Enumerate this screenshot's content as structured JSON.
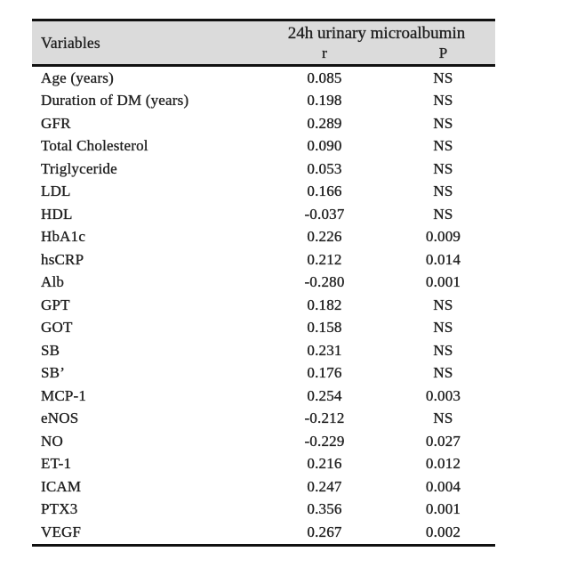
{
  "table": {
    "header": {
      "variables_label": "Variables",
      "group_label": "24h urinary microalbumin",
      "col_r": "r",
      "col_p": "P"
    },
    "rows": [
      {
        "variable": "Age (years)",
        "r": "0.085",
        "p": "NS"
      },
      {
        "variable": "Duration of DM (years)",
        "r": "0.198",
        "p": "NS"
      },
      {
        "variable": "GFR",
        "r": "0.289",
        "p": "NS"
      },
      {
        "variable": "Total Cholesterol",
        "r": "0.090",
        "p": "NS"
      },
      {
        "variable": "Triglyceride",
        "r": "0.053",
        "p": "NS"
      },
      {
        "variable": "LDL",
        "r": "0.166",
        "p": "NS"
      },
      {
        "variable": "HDL",
        "r": "-0.037",
        "p": "NS"
      },
      {
        "variable": "HbA1c",
        "r": "0.226",
        "p": "0.009"
      },
      {
        "variable": "hsCRP",
        "r": "0.212",
        "p": "0.014"
      },
      {
        "variable": "Alb",
        "r": "-0.280",
        "p": "0.001"
      },
      {
        "variable": "GPT",
        "r": "0.182",
        "p": "NS"
      },
      {
        "variable": "GOT",
        "r": "0.158",
        "p": "NS"
      },
      {
        "variable": "SB",
        "r": "0.231",
        "p": "NS"
      },
      {
        "variable": "SB’",
        "r": "0.176",
        "p": "NS"
      },
      {
        "variable": "MCP-1",
        "r": "0.254",
        "p": "0.003"
      },
      {
        "variable": "eNOS",
        "r": "-0.212",
        "p": "NS"
      },
      {
        "variable": "NO",
        "r": "-0.229",
        "p": "0.027"
      },
      {
        "variable": "ET-1",
        "r": "0.216",
        "p": "0.012"
      },
      {
        "variable": "ICAM",
        "r": "0.247",
        "p": "0.004"
      },
      {
        "variable": "PTX3",
        "r": "0.356",
        "p": "0.001"
      },
      {
        "variable": "VEGF",
        "r": "0.267",
        "p": "0.002"
      }
    ]
  },
  "chart_data": {
    "type": "table",
    "columns": [
      "Variables",
      "r",
      "P"
    ],
    "column_group": {
      "label": "24h urinary microalbumin",
      "spans": [
        "r",
        "P"
      ]
    },
    "rows": [
      [
        "Age (years)",
        0.085,
        "NS"
      ],
      [
        "Duration of DM (years)",
        0.198,
        "NS"
      ],
      [
        "GFR",
        0.289,
        "NS"
      ],
      [
        "Total Cholesterol",
        0.09,
        "NS"
      ],
      [
        "Triglyceride",
        0.053,
        "NS"
      ],
      [
        "LDL",
        0.166,
        "NS"
      ],
      [
        "HDL",
        -0.037,
        "NS"
      ],
      [
        "HbA1c",
        0.226,
        0.009
      ],
      [
        "hsCRP",
        0.212,
        0.014
      ],
      [
        "Alb",
        -0.28,
        0.001
      ],
      [
        "GPT",
        0.182,
        "NS"
      ],
      [
        "GOT",
        0.158,
        "NS"
      ],
      [
        "SB",
        0.231,
        "NS"
      ],
      [
        "SB’",
        0.176,
        "NS"
      ],
      [
        "MCP-1",
        0.254,
        0.003
      ],
      [
        "eNOS",
        -0.212,
        "NS"
      ],
      [
        "NO",
        -0.229,
        0.027
      ],
      [
        "ET-1",
        0.216,
        0.012
      ],
      [
        "ICAM",
        0.247,
        0.004
      ],
      [
        "PTX3",
        0.356,
        0.001
      ],
      [
        "VEGF",
        0.267,
        0.002
      ]
    ]
  },
  "colors": {
    "page_bg": "#ffffff",
    "header_bg": "#dbdbdb",
    "border": "#111111",
    "text": "#1f1f1f"
  }
}
